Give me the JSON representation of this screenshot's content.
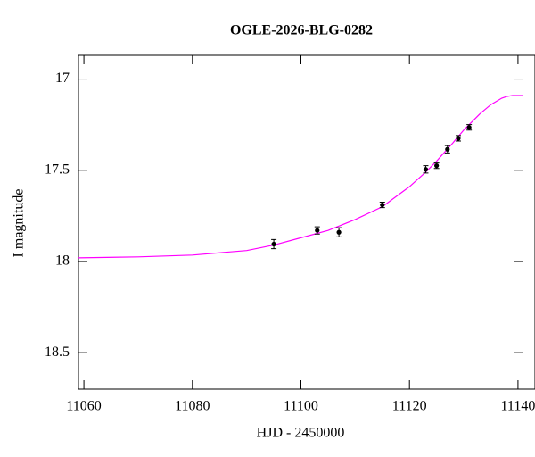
{
  "chart_data": {
    "type": "line",
    "title": "OGLE-2026-BLG-0282",
    "x_label": "HJD - 2450000",
    "y_label": "I magnitude",
    "xlim": [
      11059,
      11141
    ],
    "ylim": [
      18.7,
      16.87
    ],
    "xticks": [
      11060,
      11080,
      11100,
      11120,
      11140
    ],
    "yticks": [
      17,
      17.5,
      18,
      18.5
    ],
    "invert_y": true,
    "color": "#ff00ff",
    "x": [
      11059,
      11070,
      11080,
      11090,
      11095,
      11100,
      11105,
      11110,
      11115,
      11120,
      11123,
      11125,
      11128,
      11130,
      11133,
      11135,
      11137,
      11138,
      11139,
      11141
    ],
    "values": [
      17.98,
      17.975,
      17.965,
      17.94,
      17.91,
      17.87,
      17.83,
      17.77,
      17.7,
      17.59,
      17.51,
      17.45,
      17.35,
      17.28,
      17.19,
      17.14,
      17.105,
      17.095,
      17.09,
      17.09
    ],
    "points": {
      "color": "#000000",
      "x": [
        11095,
        11103,
        11107,
        11115,
        11123,
        11125,
        11127,
        11129,
        11131
      ],
      "values": [
        17.905,
        17.83,
        17.84,
        17.69,
        17.495,
        17.475,
        17.385,
        17.325,
        17.265
      ],
      "errors": [
        0.025,
        0.02,
        0.025,
        0.015,
        0.02,
        0.015,
        0.02,
        0.015,
        0.015
      ]
    }
  }
}
